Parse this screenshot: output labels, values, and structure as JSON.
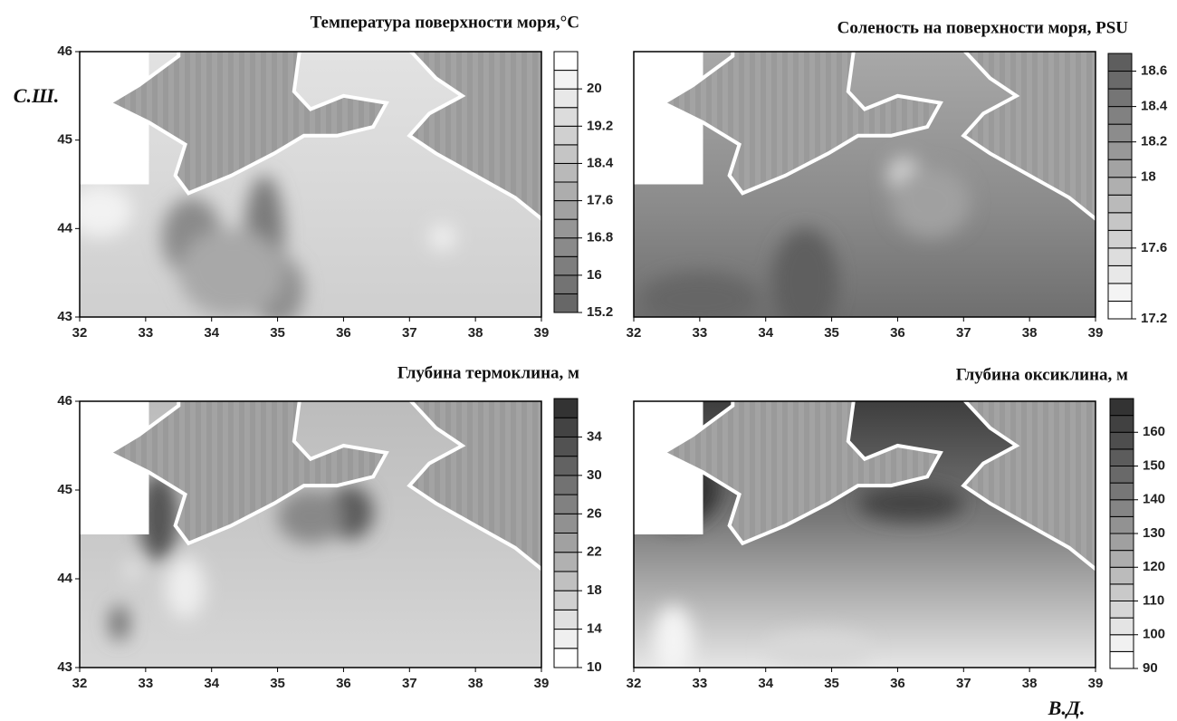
{
  "chart_data": [
    {
      "type": "contour",
      "title": "Температура поверхности моря,°C",
      "xlim": [
        32,
        39
      ],
      "ylim": [
        43,
        46
      ],
      "xticks": [
        32,
        33,
        34,
        35,
        36,
        37,
        38,
        39
      ],
      "yticks": [
        43,
        44,
        45,
        46
      ],
      "colorbar": {
        "lim": [
          15.2,
          20.8
        ],
        "step": 0.4,
        "ticks": [
          15.2,
          16,
          16.8,
          17.6,
          18.4,
          19.2,
          20
        ],
        "low_color": "#676767",
        "high_color": "#ffffff"
      }
    },
    {
      "type": "contour",
      "title": "Соленость на поверхности моря, PSU",
      "xlim": [
        32,
        39
      ],
      "ylim": [
        43,
        46
      ],
      "xticks": [
        32,
        33,
        34,
        35,
        36,
        37,
        38,
        39
      ],
      "colorbar": {
        "lim": [
          17.2,
          18.7
        ],
        "step": 0.1,
        "ticks": [
          17.2,
          17.6,
          18,
          18.2,
          18.4,
          18.6
        ],
        "low_color": "#ffffff",
        "high_color": "#5e5e5e"
      }
    },
    {
      "type": "contour",
      "title": "Глубина термоклина, м",
      "xlim": [
        32,
        39
      ],
      "ylim": [
        43,
        46
      ],
      "xticks": [
        32,
        33,
        34,
        35,
        36,
        37,
        38,
        39
      ],
      "yticks": [
        43,
        44,
        45,
        46
      ],
      "colorbar": {
        "lim": [
          10,
          38
        ],
        "step": 2,
        "ticks": [
          10,
          14,
          18,
          22,
          26,
          30,
          34
        ],
        "low_color": "#ffffff",
        "high_color": "#333333"
      }
    },
    {
      "type": "contour",
      "title": "Глубина оксиклина, м",
      "xlim": [
        32,
        39
      ],
      "ylim": [
        43,
        46
      ],
      "xticks": [
        32,
        33,
        34,
        35,
        36,
        37,
        38,
        39
      ],
      "colorbar": {
        "lim": [
          90,
          170
        ],
        "step": 5,
        "ticks": [
          90,
          100,
          110,
          120,
          130,
          140,
          150,
          160
        ],
        "low_color": "#ffffff",
        "high_color": "#333333"
      }
    }
  ],
  "figure": {
    "y_label": "С.Ш.",
    "x_label": "В.Д."
  }
}
